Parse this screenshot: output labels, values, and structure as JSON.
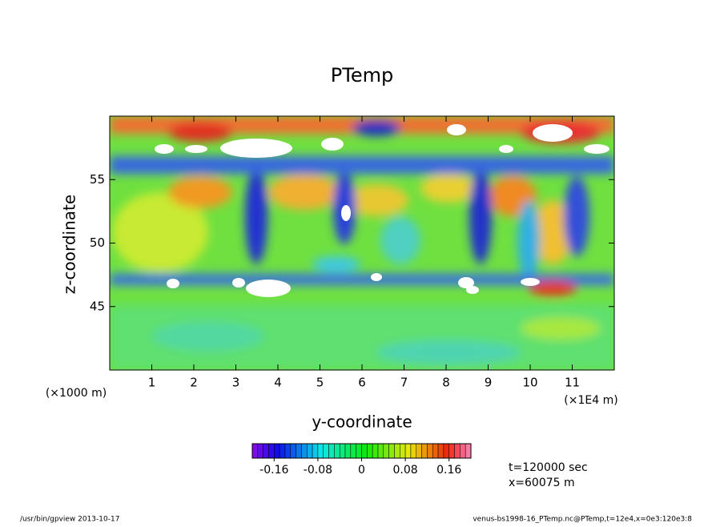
{
  "chart_data": {
    "type": "contour",
    "title": "PTemp",
    "x_label": "y-coordinate",
    "y_label": "z-coordinate",
    "x_unit_label": "(×1E4 m)",
    "y_unit_label": "(×1000 m)",
    "xlim": [
      0,
      12
    ],
    "xticks": [
      1,
      2,
      3,
      4,
      5,
      6,
      7,
      8,
      9,
      10,
      11
    ],
    "ylim": [
      40,
      60
    ],
    "yticks": [
      45,
      50,
      55
    ],
    "colorbar": {
      "lim": [
        -0.2,
        0.2
      ],
      "ticks": [
        -0.16,
        -0.08,
        0,
        0.08,
        0.16
      ],
      "levels": 40
    },
    "annotations": [
      "t=120000 sec",
      "x=60075 m"
    ],
    "footer_left": "/usr/bin/gpview  2013-10-17",
    "footer_right": "venus-bs1998-16_PTemp.nc@PTemp,t=12e4,x=0e3:120e3:8"
  }
}
